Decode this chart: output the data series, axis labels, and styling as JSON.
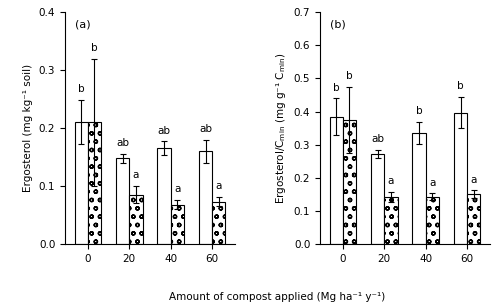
{
  "panel_a": {
    "title": "(a)",
    "ylabel": "Ergosterol (mg kg⁻¹ soil)",
    "ylim": [
      0,
      0.4
    ],
    "yticks": [
      0.0,
      0.1,
      0.2,
      0.3,
      0.4
    ],
    "categories": [
      0,
      20,
      40,
      60
    ],
    "july_values": [
      0.21,
      0.148,
      0.165,
      0.16
    ],
    "july_errors": [
      0.038,
      0.008,
      0.012,
      0.02
    ],
    "sept_values": [
      0.21,
      0.085,
      0.068,
      0.073
    ],
    "sept_errors": [
      0.11,
      0.015,
      0.008,
      0.008
    ],
    "july_letters": [
      "b",
      "ab",
      "ab",
      "ab"
    ],
    "sept_letters": [
      "b",
      "a",
      "a",
      "a"
    ]
  },
  "panel_b": {
    "title": "(b)",
    "ylabel": "Ergosterol/C$_\\mathregular{min}$ (mg g⁻¹ C$_\\mathregular{min}$)",
    "ylim": [
      0,
      0.7
    ],
    "yticks": [
      0.0,
      0.1,
      0.2,
      0.3,
      0.4,
      0.5,
      0.6,
      0.7
    ],
    "categories": [
      0,
      20,
      40,
      60
    ],
    "july_values": [
      0.385,
      0.273,
      0.336,
      0.397
    ],
    "july_errors": [
      0.055,
      0.012,
      0.033,
      0.048
    ],
    "sept_values": [
      0.375,
      0.143,
      0.143,
      0.15
    ],
    "sept_errors": [
      0.1,
      0.015,
      0.01,
      0.012
    ],
    "july_letters": [
      "b",
      "ab",
      "b",
      "b"
    ],
    "sept_letters": [
      "b",
      "a",
      "a",
      "a"
    ]
  },
  "xlabel": "Amount of compost applied (Mg ha⁻¹ y⁻¹)",
  "bar_width": 0.32,
  "july_color": "white",
  "edge_color": "black",
  "sept_hatch": "oo",
  "font_size": 7.5,
  "letter_font_size": 7.5
}
